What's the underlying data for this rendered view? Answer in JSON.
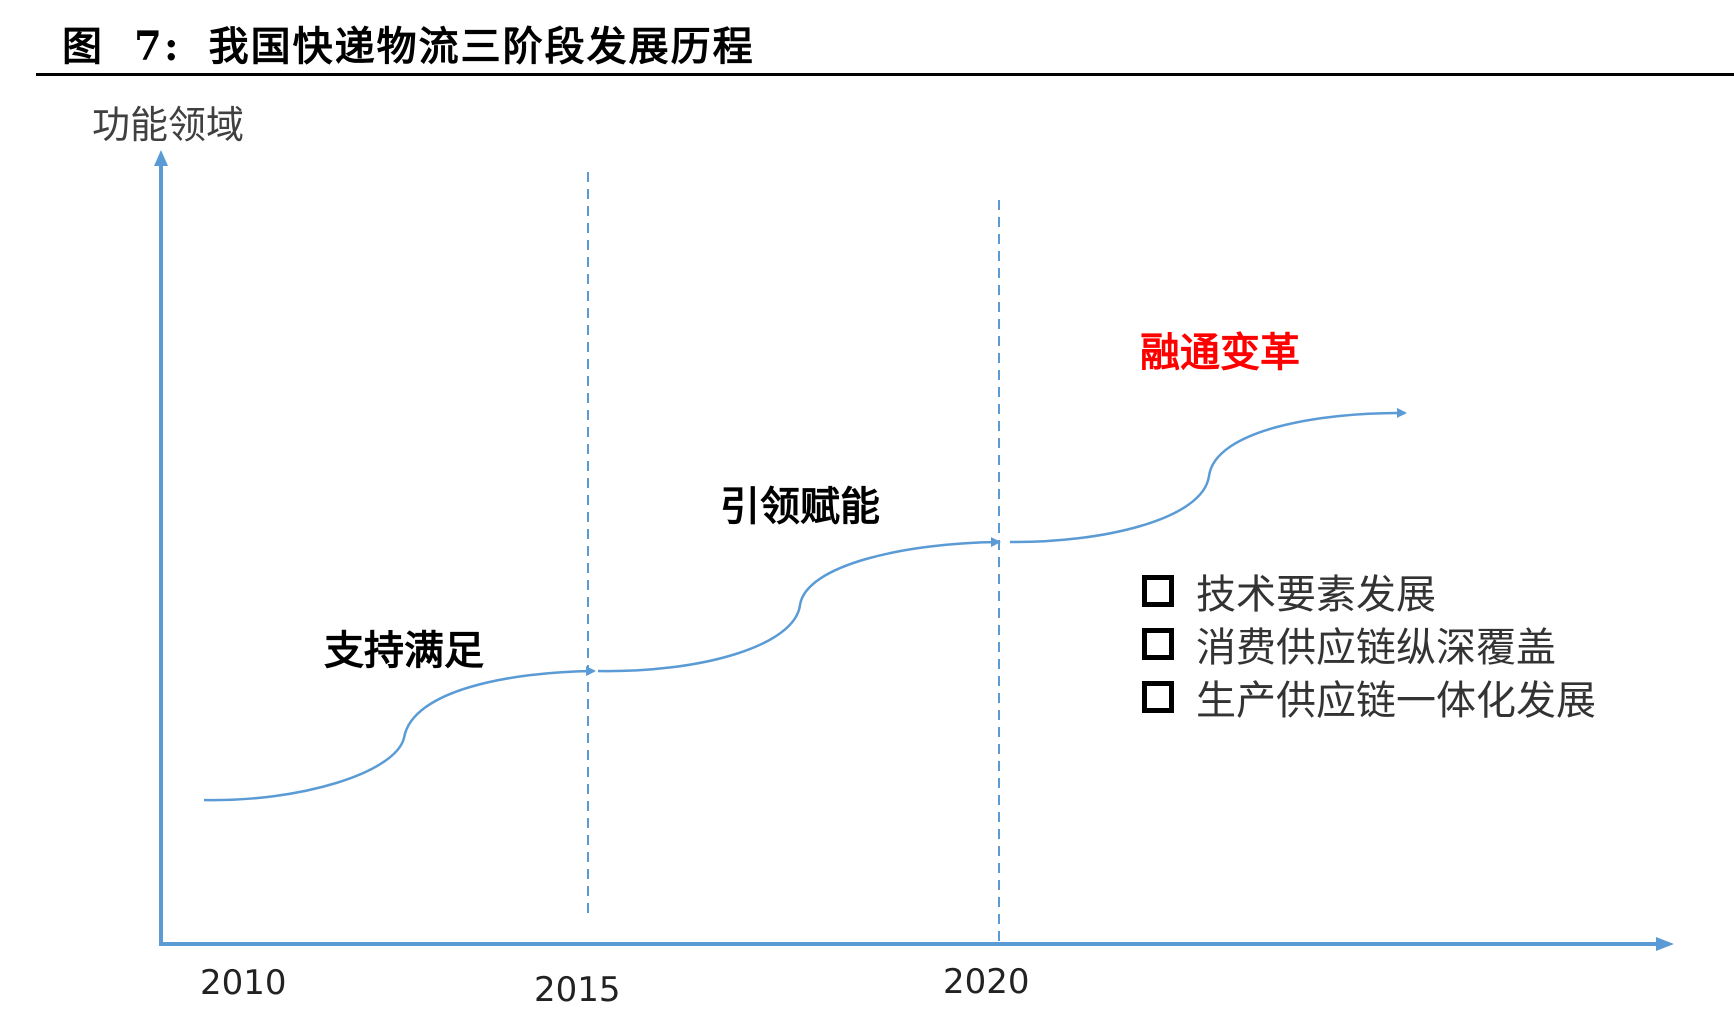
{
  "title": {
    "prefix": "图",
    "number": "7:",
    "text": "我国快递物流三阶段发展历程"
  },
  "y_axis_label": "功能领域",
  "years": [
    "2010",
    "2015",
    "2020"
  ],
  "stages": [
    {
      "label": "支持满足",
      "color": "#000000"
    },
    {
      "label": "引领赋能",
      "color": "#000000"
    },
    {
      "label": "融通变革",
      "color": "#ff0000"
    }
  ],
  "features": [
    "技术要素发展",
    "消费供应链纵深覆盖",
    "生产供应链一体化发展"
  ],
  "colors": {
    "axis": "#5b9bd5",
    "curve": "#5b9bd5",
    "accent": "#ff0000"
  }
}
